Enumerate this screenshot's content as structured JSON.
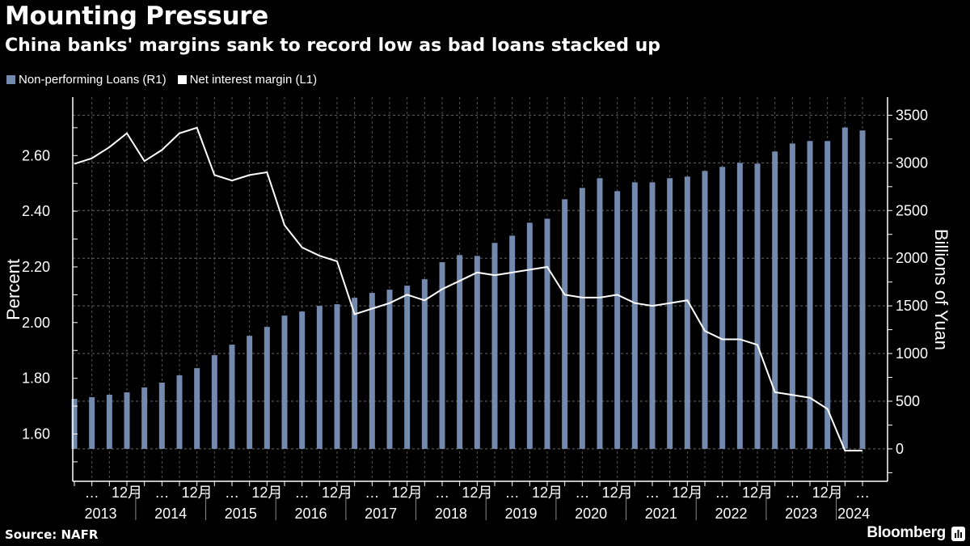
{
  "header": {
    "title": "Mounting Pressure",
    "subtitle": "China banks' margins sank to record low as bad loans stacked up"
  },
  "footer": {
    "source": "Source: NAFR",
    "brand": "Bloomberg"
  },
  "chart_data": {
    "type": "bar+line",
    "title": "Mounting Pressure",
    "subtitle": "China banks' margins sank to record low as bad loans stacked up",
    "x_tick_labels_pattern": [
      "…",
      "12月"
    ],
    "x_year_labels": [
      "2013",
      "2014",
      "2015",
      "2016",
      "2017",
      "2018",
      "2019",
      "2020",
      "2021",
      "2022",
      "2023",
      "2024"
    ],
    "x": [
      "2013Q1",
      "2013Q2",
      "2013Q3",
      "2013Q4",
      "2014Q1",
      "2014Q2",
      "2014Q3",
      "2014Q4",
      "2015Q1",
      "2015Q2",
      "2015Q3",
      "2015Q4",
      "2016Q1",
      "2016Q2",
      "2016Q3",
      "2016Q4",
      "2017Q1",
      "2017Q2",
      "2017Q3",
      "2017Q4",
      "2018Q1",
      "2018Q2",
      "2018Q3",
      "2018Q4",
      "2019Q1",
      "2019Q2",
      "2019Q3",
      "2019Q4",
      "2020Q1",
      "2020Q2",
      "2020Q3",
      "2020Q4",
      "2021Q1",
      "2021Q2",
      "2021Q3",
      "2021Q4",
      "2022Q1",
      "2022Q2",
      "2022Q3",
      "2022Q4",
      "2023Q1",
      "2023Q2",
      "2023Q3",
      "2023Q4",
      "2024Q1",
      "2024Q2"
    ],
    "left_axis": {
      "label": "Percent",
      "range": [
        1.43,
        2.81
      ],
      "ticks": [
        1.6,
        1.8,
        2.0,
        2.2,
        2.4,
        2.6
      ],
      "tick_labels": [
        "1.60",
        "1.80",
        "2.00",
        "2.20",
        "2.40",
        "2.60"
      ]
    },
    "right_axis": {
      "label": "Billions of Yuan",
      "range": [
        -340,
        3690
      ],
      "ticks": [
        0,
        500,
        1000,
        1500,
        2000,
        2500,
        3000,
        3500
      ],
      "tick_labels": [
        "0",
        "500",
        "1000",
        "1500",
        "2000",
        "2500",
        "3000",
        "3500"
      ]
    },
    "grid": true,
    "legend_position": "top-left",
    "series": [
      {
        "name": "Non-performing Loans (R1)",
        "type": "bar",
        "axis": "right",
        "color": "#7389ae",
        "values": [
          525,
          542,
          568,
          593,
          644,
          695,
          771,
          847,
          983,
          1093,
          1186,
          1279,
          1398,
          1441,
          1500,
          1517,
          1585,
          1636,
          1670,
          1712,
          1780,
          1958,
          2033,
          2024,
          2160,
          2236,
          2372,
          2414,
          2618,
          2737,
          2839,
          2703,
          2796,
          2796,
          2839,
          2856,
          2915,
          2958,
          3000,
          2992,
          3119,
          3203,
          3229,
          3229,
          3371,
          3340
        ]
      },
      {
        "name": "Net interest margin (L1)",
        "type": "line",
        "axis": "left",
        "color": "#ffffff",
        "values": [
          2.57,
          2.59,
          2.63,
          2.68,
          2.58,
          2.62,
          2.68,
          2.7,
          2.53,
          2.51,
          2.53,
          2.54,
          2.35,
          2.27,
          2.24,
          2.22,
          2.03,
          2.05,
          2.07,
          2.1,
          2.08,
          2.12,
          2.15,
          2.18,
          2.17,
          2.18,
          2.19,
          2.2,
          2.1,
          2.09,
          2.09,
          2.1,
          2.07,
          2.06,
          2.07,
          2.08,
          1.97,
          1.94,
          1.94,
          1.92,
          1.75,
          1.74,
          1.73,
          1.69,
          1.54,
          1.54
        ]
      }
    ]
  }
}
